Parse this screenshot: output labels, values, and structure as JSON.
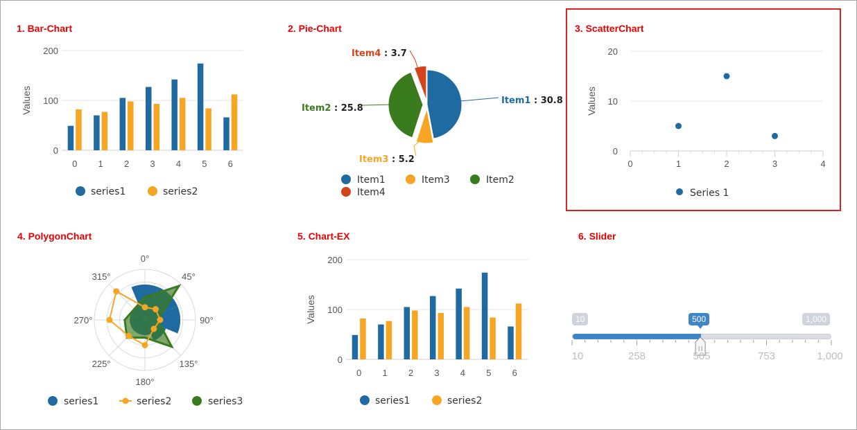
{
  "colors": {
    "blue": "#1f6aa0",
    "orange": "#f6a623",
    "green": "#3a7b1e",
    "red": "#d4441a",
    "grid": "#e3e3e3",
    "title": "#e60000",
    "slider_blue": "#3f86c9"
  },
  "panels": {
    "bar": {
      "title": "1. Bar-Chart"
    },
    "pie": {
      "title": "2. Pie-Chart"
    },
    "scatter": {
      "title": "3. ScatterChart"
    },
    "polygon": {
      "title": "4. PolygonChart"
    },
    "chartex": {
      "title": "5. Chart-EX"
    },
    "slider": {
      "title": "6. Slider"
    }
  },
  "chart_data": [
    {
      "type": "bar",
      "title": "1. Bar-Chart",
      "ylabel": "Values",
      "xlabel": "",
      "categories": [
        "0",
        "1",
        "2",
        "3",
        "4",
        "5",
        "6"
      ],
      "series": [
        {
          "name": "series1",
          "color": "#1f6aa0",
          "values": [
            49,
            70,
            105,
            127,
            142,
            174,
            66
          ]
        },
        {
          "name": "series2",
          "color": "#f6a623",
          "values": [
            82,
            77,
            98,
            93,
            105,
            84,
            112
          ]
        }
      ],
      "ylim": [
        0,
        200
      ],
      "yticks": [
        "0",
        "100",
        "200"
      ],
      "grid": true,
      "legend": "bottom"
    },
    {
      "type": "pie",
      "title": "2. Pie-Chart",
      "slices": [
        {
          "name": "Item1",
          "value": 30.8,
          "color": "#1f6aa0"
        },
        {
          "name": "Item3",
          "value": 5.2,
          "color": "#f6a623"
        },
        {
          "name": "Item2",
          "value": 25.8,
          "color": "#3a7b1e"
        },
        {
          "name": "Item4",
          "value": 3.7,
          "color": "#d4441a"
        }
      ],
      "legend": "bottom"
    },
    {
      "type": "scatter",
      "title": "3. ScatterChart",
      "ylabel": "Values",
      "series": [
        {
          "name": "Series 1",
          "color": "#1f6aa0",
          "x": [
            1,
            2,
            3
          ],
          "y": [
            5,
            15,
            3
          ]
        }
      ],
      "xlim": [
        0,
        4
      ],
      "ylim": [
        0,
        20
      ],
      "xticks": [
        "0",
        "1",
        "2",
        "3",
        "4"
      ],
      "yticks": [
        "0",
        "10",
        "20"
      ],
      "grid": true,
      "legend": "bottom"
    },
    {
      "type": "polygon",
      "title": "4. PolygonChart",
      "angle_labels": [
        "0°",
        "45°",
        "90°",
        "135°",
        "180°",
        "225°",
        "270°",
        "315°"
      ],
      "series": [
        {
          "name": "series1",
          "color": "#1f6aa0",
          "style": "wedges",
          "values": [
            0.7,
            0.7,
            0.7,
            0.45,
            0.3,
            0.3,
            0.3,
            0.3
          ]
        },
        {
          "name": "series2",
          "color": "#f6a623",
          "style": "line-markers",
          "values": [
            0.25,
            0.3,
            0.3,
            0.25,
            0.5,
            0.45,
            0.7,
            0.8
          ]
        },
        {
          "name": "series3",
          "color": "#3a7b1e",
          "style": "area",
          "values": [
            0.45,
            0.95,
            0.25,
            0.75,
            0.35,
            0.5,
            0.4,
            0.3
          ]
        }
      ],
      "rlim": [
        0,
        1
      ],
      "legend": "bottom"
    },
    {
      "type": "bar",
      "title": "5. Chart-EX",
      "ylabel": "Values",
      "xlabel": "",
      "categories": [
        "0",
        "1",
        "2",
        "3",
        "4",
        "5",
        "6"
      ],
      "series": [
        {
          "name": "series1",
          "color": "#1f6aa0",
          "values": [
            49,
            70,
            105,
            127,
            142,
            174,
            66
          ]
        },
        {
          "name": "series2",
          "color": "#f6a623",
          "values": [
            82,
            77,
            98,
            93,
            105,
            84,
            112
          ]
        }
      ],
      "ylim": [
        0,
        200
      ],
      "yticks": [
        "0",
        "100",
        "200"
      ],
      "grid": true,
      "legend": "bottom"
    }
  ],
  "slider": {
    "min": 10,
    "max": 1000,
    "value": 500,
    "value_fraction": 0.495,
    "min_label": "10",
    "max_label": "1,000",
    "value_label": "500",
    "tick_labels": [
      "10",
      "258",
      "505",
      "753",
      "1,000"
    ]
  }
}
